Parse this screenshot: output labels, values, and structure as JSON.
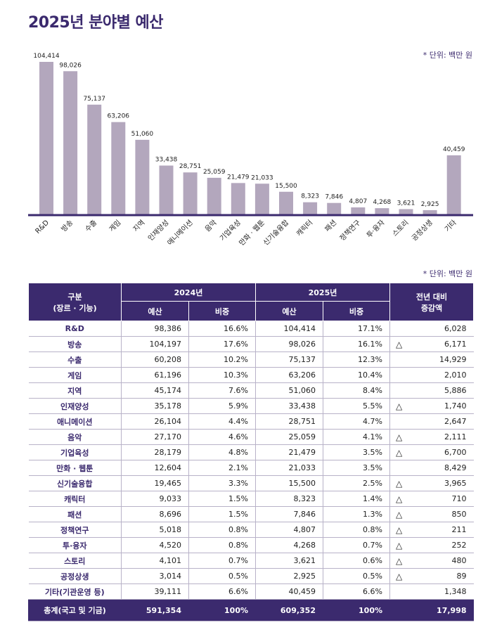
{
  "page": {
    "title": "2025년 분야별 예산",
    "unit_note_chart": "* 단위: 백만 원",
    "unit_note_table": "* 단위: 백만 원"
  },
  "chart_data": {
    "type": "bar",
    "categories": [
      "R&D",
      "방송",
      "수출",
      "게임",
      "지역",
      "인재양성",
      "애니메이션",
      "음악",
      "기업육성",
      "만화 · 웹툰",
      "신기술융합",
      "캐릭터",
      "패션",
      "정책연구",
      "투·융자",
      "스토리",
      "공정상생",
      "기타"
    ],
    "values": [
      104414,
      98026,
      75137,
      63206,
      51060,
      33438,
      28751,
      25059,
      21479,
      21033,
      15500,
      8323,
      7846,
      4807,
      4268,
      3621,
      2925,
      40459
    ],
    "value_labels": [
      "104,414",
      "98,026",
      "75,137",
      "63,206",
      "51,060",
      "33,438",
      "28,751",
      "25,059",
      "21,479",
      "21,033",
      "15,500",
      "8,323",
      "7,846",
      "4,807",
      "4,268",
      "3,621",
      "2,925",
      "40,459"
    ],
    "ylim": [
      0,
      104414
    ],
    "grid": false,
    "bar_color": "#b3a7bd",
    "axis_color": "#3b2a6e"
  },
  "table": {
    "header": {
      "category": "구분",
      "category_sub": "(장르 · 기능)",
      "year_2024": "2024년",
      "year_2025": "2025년",
      "change": "전년 대비",
      "change_sub": "증감액",
      "budget": "예산",
      "ratio": "비중"
    },
    "rows": [
      {
        "name": "R&D",
        "b2024": "98,386",
        "r2024": "16.6%",
        "b2025": "104,414",
        "r2025": "17.1%",
        "dec": "",
        "delta": "6,028"
      },
      {
        "name": "방송",
        "b2024": "104,197",
        "r2024": "17.6%",
        "b2025": "98,026",
        "r2025": "16.1%",
        "dec": "△",
        "delta": "6,171"
      },
      {
        "name": "수출",
        "b2024": "60,208",
        "r2024": "10.2%",
        "b2025": "75,137",
        "r2025": "12.3%",
        "dec": "",
        "delta": "14,929"
      },
      {
        "name": "게임",
        "b2024": "61,196",
        "r2024": "10.3%",
        "b2025": "63,206",
        "r2025": "10.4%",
        "dec": "",
        "delta": "2,010"
      },
      {
        "name": "지역",
        "b2024": "45,174",
        "r2024": "7.6%",
        "b2025": "51,060",
        "r2025": "8.4%",
        "dec": "",
        "delta": "5,886"
      },
      {
        "name": "인재양성",
        "b2024": "35,178",
        "r2024": "5.9%",
        "b2025": "33,438",
        "r2025": "5.5%",
        "dec": "△",
        "delta": "1,740"
      },
      {
        "name": "애니메이션",
        "b2024": "26,104",
        "r2024": "4.4%",
        "b2025": "28,751",
        "r2025": "4.7%",
        "dec": "",
        "delta": "2,647"
      },
      {
        "name": "음악",
        "b2024": "27,170",
        "r2024": "4.6%",
        "b2025": "25,059",
        "r2025": "4.1%",
        "dec": "△",
        "delta": "2,111"
      },
      {
        "name": "기업육성",
        "b2024": "28,179",
        "r2024": "4.8%",
        "b2025": "21,479",
        "r2025": "3.5%",
        "dec": "△",
        "delta": "6,700"
      },
      {
        "name": "만화 · 웹툰",
        "b2024": "12,604",
        "r2024": "2.1%",
        "b2025": "21,033",
        "r2025": "3.5%",
        "dec": "",
        "delta": "8,429"
      },
      {
        "name": "신기술융합",
        "b2024": "19,465",
        "r2024": "3.3%",
        "b2025": "15,500",
        "r2025": "2.5%",
        "dec": "△",
        "delta": "3,965"
      },
      {
        "name": "캐릭터",
        "b2024": "9,033",
        "r2024": "1.5%",
        "b2025": "8,323",
        "r2025": "1.4%",
        "dec": "△",
        "delta": "710"
      },
      {
        "name": "패션",
        "b2024": "8,696",
        "r2024": "1.5%",
        "b2025": "7,846",
        "r2025": "1.3%",
        "dec": "△",
        "delta": "850"
      },
      {
        "name": "정책연구",
        "b2024": "5,018",
        "r2024": "0.8%",
        "b2025": "4,807",
        "r2025": "0.8%",
        "dec": "△",
        "delta": "211"
      },
      {
        "name": "투·융자",
        "b2024": "4,520",
        "r2024": "0.8%",
        "b2025": "4,268",
        "r2025": "0.7%",
        "dec": "△",
        "delta": "252"
      },
      {
        "name": "스토리",
        "b2024": "4,101",
        "r2024": "0.7%",
        "b2025": "3,621",
        "r2025": "0.6%",
        "dec": "△",
        "delta": "480"
      },
      {
        "name": "공정상생",
        "b2024": "3,014",
        "r2024": "0.5%",
        "b2025": "2,925",
        "r2025": "0.5%",
        "dec": "△",
        "delta": "89"
      },
      {
        "name": "기타(기관운영 등)",
        "b2024": "39,111",
        "r2024": "6.6%",
        "b2025": "40,459",
        "r2025": "6.6%",
        "dec": "",
        "delta": "1,348"
      }
    ],
    "total": {
      "name": "총계(국고 및 기금)",
      "b2024": "591,354",
      "r2024": "100%",
      "b2025": "609,352",
      "r2025": "100%",
      "dec": "",
      "delta": "17,998"
    }
  }
}
